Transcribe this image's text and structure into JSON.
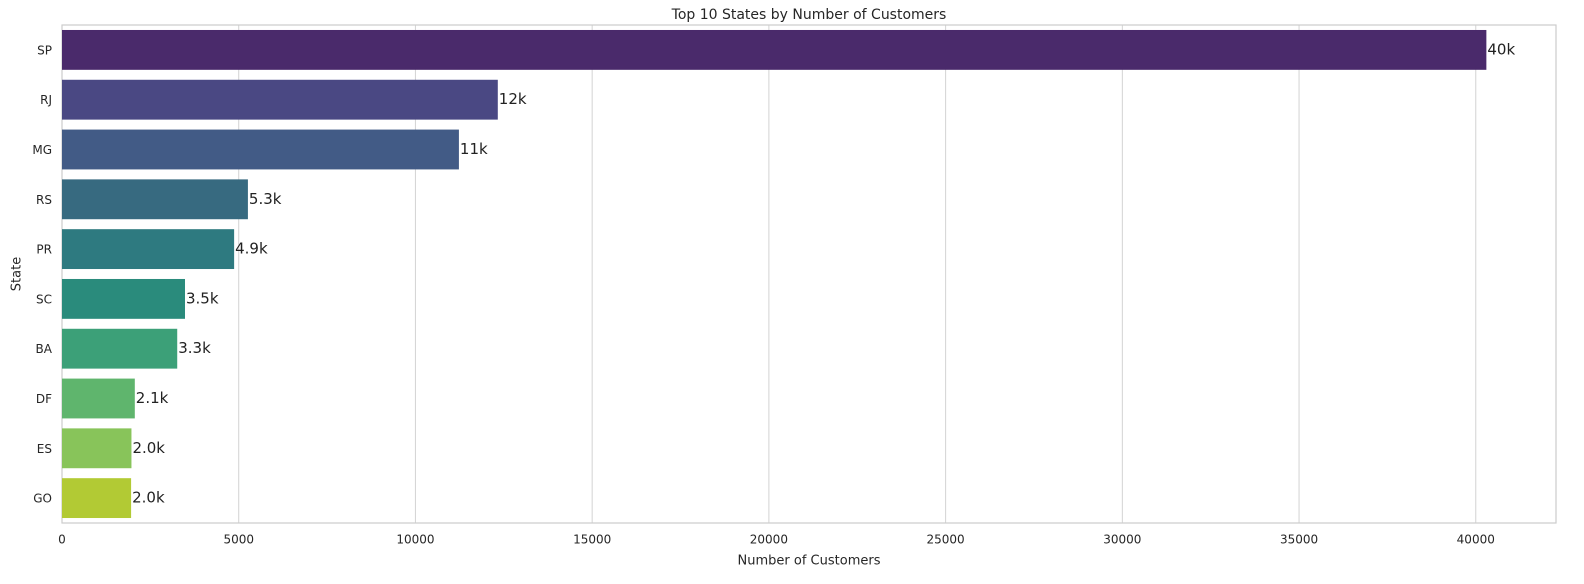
{
  "chart_data": {
    "type": "barh",
    "title": "Top 10 States by Number of Customers",
    "x_label": "Number of Customers",
    "y_label": "State",
    "categories": [
      "SP",
      "RJ",
      "MG",
      "RS",
      "PR",
      "SC",
      "BA",
      "DF",
      "ES",
      "GO"
    ],
    "values": [
      40300,
      12330,
      11230,
      5260,
      4870,
      3480,
      3260,
      2060,
      1965,
      1955
    ],
    "value_labels": [
      "40k",
      "12k",
      "11k",
      "5.3k",
      "4.9k",
      "3.5k",
      "3.3k",
      "2.1k",
      "2.0k",
      "2.0k"
    ],
    "colors": [
      "#4a2a6b",
      "#4a4883",
      "#425b86",
      "#376a80",
      "#2e7a80",
      "#2a8b7c",
      "#3ca078",
      "#5fb56d",
      "#88c45a",
      "#b2ca34"
    ],
    "xlim": [
      0,
      42270
    ],
    "xticks": [
      0,
      5000,
      10000,
      15000,
      20000,
      25000,
      30000,
      35000,
      40000
    ],
    "grid": true
  }
}
